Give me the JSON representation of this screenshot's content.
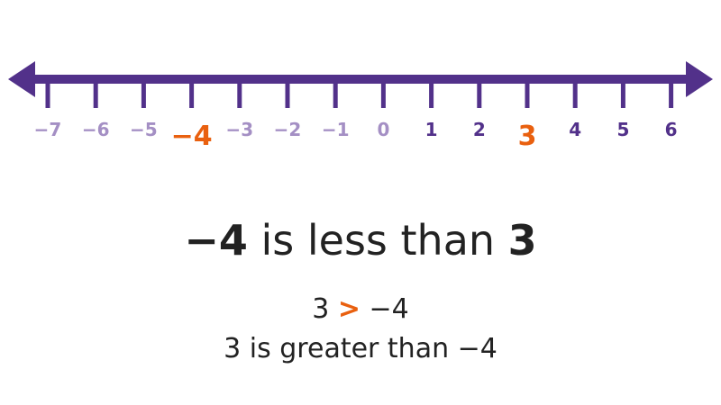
{
  "number_line": {
    "min": -7,
    "max": 6,
    "highlighted": [
      -4,
      3
    ],
    "labels": [
      "−7",
      "−6",
      "−5",
      "−4",
      "−3",
      "−2",
      "−1",
      "0",
      "1",
      "2",
      "3",
      "4",
      "5",
      "6"
    ],
    "colors": {
      "line": "#52318a",
      "negative_label": "#a48fc4",
      "zero_label": "#a48fc4",
      "positive_label": "#52318a",
      "highlight": "#e9600f"
    }
  },
  "statement": {
    "a": "−4",
    "middle": " is less than ",
    "b": "3"
  },
  "inequality": {
    "left": "3 ",
    "operator": ">",
    "right": " −4"
  },
  "words": "3 is greater than −4"
}
